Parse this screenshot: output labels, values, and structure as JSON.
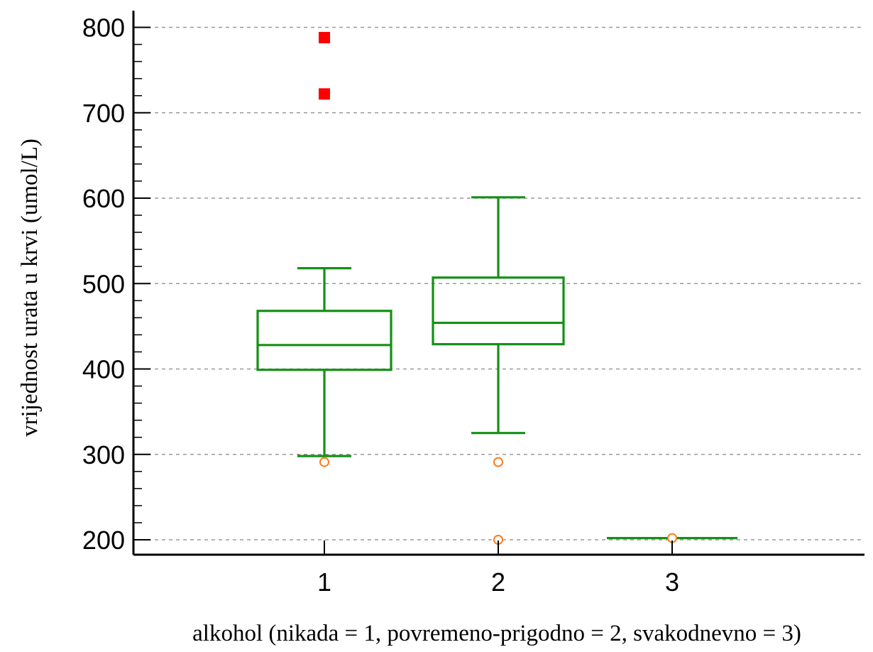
{
  "chart_data": {
    "type": "box",
    "xlabel": "alkohol (nikada = 1, povremeno-prigodno = 2, svakodnevno = 3)",
    "ylabel": "vrijednost urata  u krvi (umol/L)",
    "categories": [
      "1",
      "2",
      "3"
    ],
    "ylim": [
      190,
      810
    ],
    "yticks": [
      200,
      300,
      400,
      500,
      600,
      700,
      800
    ],
    "grid": true,
    "boxes": [
      {
        "category": "1",
        "whisker_low": 298,
        "q1": 399,
        "median": 428,
        "q3": 468,
        "whisker_high": 518
      },
      {
        "category": "2",
        "whisker_low": 325,
        "q1": 429,
        "median": 454,
        "q3": 507,
        "whisker_high": 601
      },
      {
        "category": "3",
        "whisker_low": 202,
        "q1": 202,
        "median": 202,
        "q3": 202,
        "whisker_high": 202
      }
    ],
    "outliers": [
      {
        "category": "1",
        "value": 291
      },
      {
        "category": "2",
        "value": 291
      },
      {
        "category": "2",
        "value": 200
      },
      {
        "category": "3",
        "value": 202
      }
    ],
    "far_outliers": [
      {
        "category": "1",
        "value": 788
      },
      {
        "category": "1",
        "value": 722
      }
    ],
    "colors": {
      "box": "#159015",
      "outlier": "#ff7a1a",
      "far_outlier": "#ff0000",
      "grid": "#9a9a9a",
      "axis": "#000000"
    }
  }
}
